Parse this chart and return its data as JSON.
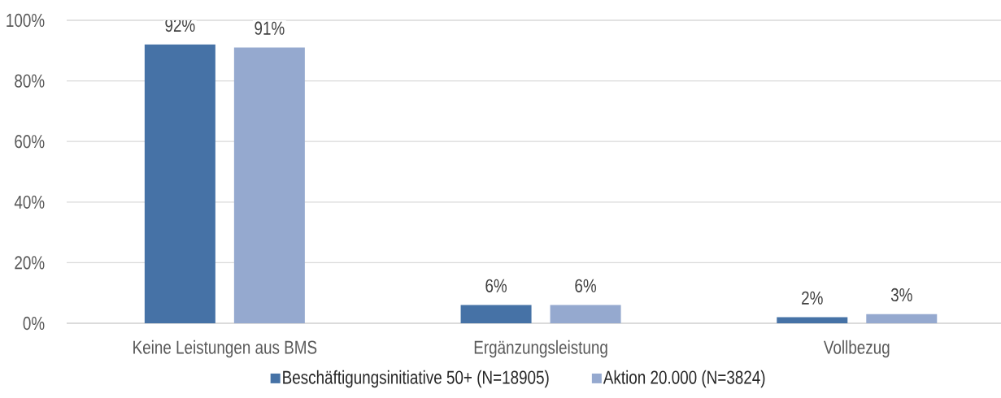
{
  "chart_data": {
    "type": "bar",
    "categories": [
      "Keine Leistungen aus BMS",
      "Ergänzungsleistung",
      "Vollbezug"
    ],
    "series": [
      {
        "name": "Beschäftigungsinitiative 50+ (N=18905)",
        "color": "#4672a6",
        "values": [
          92,
          6,
          2
        ],
        "value_labels": [
          "92%",
          "6%",
          "2%"
        ]
      },
      {
        "name": "Aktion 20.000 (N=3824)",
        "color": "#95a9cf",
        "values": [
          91,
          6,
          3
        ],
        "value_labels": [
          "91%",
          "6%",
          "3%"
        ]
      }
    ],
    "ylim": [
      0,
      100
    ],
    "yticks": [
      {
        "value": 0,
        "label": "0%"
      },
      {
        "value": 20,
        "label": "20%"
      },
      {
        "value": 40,
        "label": "40%"
      },
      {
        "value": 60,
        "label": "60%"
      },
      {
        "value": 80,
        "label": "80%"
      },
      {
        "value": 100,
        "label": "100%"
      }
    ],
    "grid": "y",
    "legend": "bottom"
  }
}
